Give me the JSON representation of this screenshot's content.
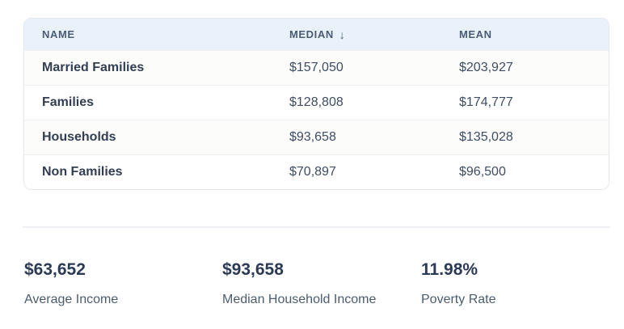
{
  "colors": {
    "header_bg": "#e9f2fb",
    "header_text": "#4a5b74",
    "row_name_text": "#323e53",
    "row_value_text": "#3e4d63",
    "row_stripe": "#fcfcfa",
    "card_border": "#e4e7eb",
    "row_divider": "#edeff1",
    "section_divider": "#edeff2",
    "stat_value_text": "#2c3b55",
    "stat_label_text": "#4b5c6f"
  },
  "table": {
    "columns": [
      {
        "label": "NAME",
        "sort_icon": ""
      },
      {
        "label": "MEDIAN",
        "sort_icon": "↓"
      },
      {
        "label": "MEAN",
        "sort_icon": ""
      }
    ],
    "rows": [
      {
        "name": "Married Families",
        "median": "$157,050",
        "mean": "$203,927"
      },
      {
        "name": "Families",
        "median": "$128,808",
        "mean": "$174,777"
      },
      {
        "name": "Households",
        "median": "$93,658",
        "mean": "$135,028"
      },
      {
        "name": "Non Families",
        "median": "$70,897",
        "mean": "$96,500"
      }
    ]
  },
  "stats": [
    {
      "value": "$63,652",
      "label": "Average Income"
    },
    {
      "value": "$93,658",
      "label": "Median Household Income"
    },
    {
      "value": "11.98%",
      "label": "Poverty Rate"
    }
  ],
  "chart_data": {
    "type": "table",
    "columns": [
      "NAME",
      "MEDIAN",
      "MEAN"
    ],
    "rows": [
      [
        "Married Families",
        157050,
        203927
      ],
      [
        "Families",
        128808,
        174777
      ],
      [
        "Households",
        93658,
        135028
      ],
      [
        "Non Families",
        70897,
        96500
      ]
    ],
    "units": "USD",
    "sorted_by": "MEDIAN",
    "sort_direction": "descending",
    "summary_stats": [
      {
        "label": "Average Income",
        "value": 63652,
        "display": "$63,652"
      },
      {
        "label": "Median Household Income",
        "value": 93658,
        "display": "$93,658"
      },
      {
        "label": "Poverty Rate",
        "value": 11.98,
        "display": "11.98%"
      }
    ]
  }
}
